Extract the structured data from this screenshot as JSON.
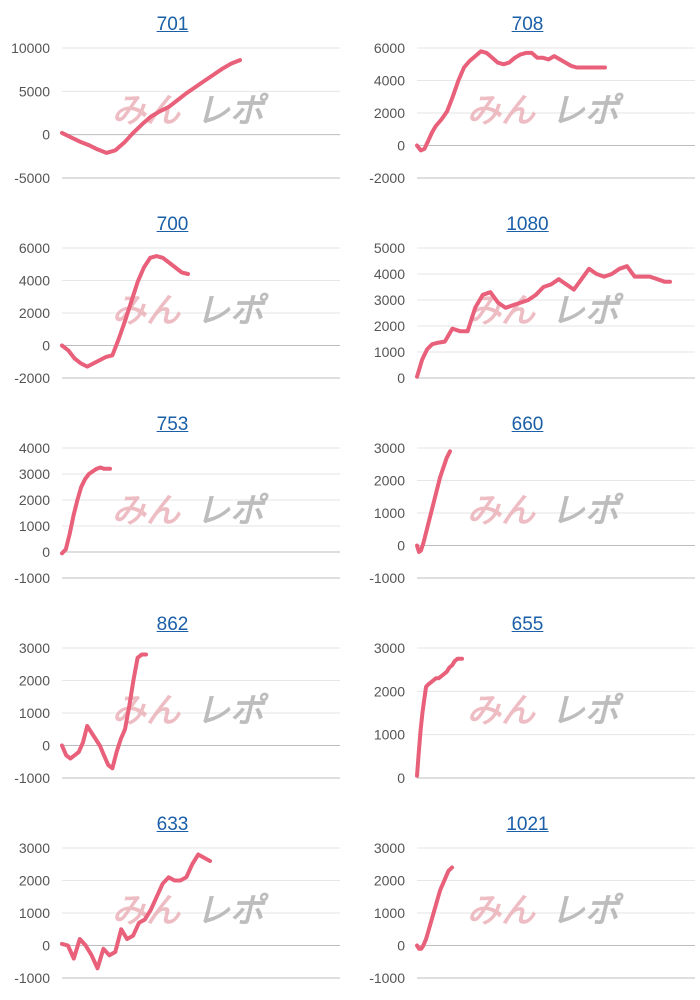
{
  "watermark": {
    "left": "みん",
    "right": "レポ"
  },
  "line_color": "#e8607a",
  "chart_data": [
    {
      "type": "line",
      "title": "701",
      "yticks": [
        10000,
        5000,
        0,
        -5000
      ],
      "ylim": [
        -5000,
        10000
      ],
      "x": [
        0,
        5,
        10,
        15,
        20,
        25,
        30,
        35,
        40,
        45,
        50,
        55,
        60,
        65,
        70,
        75,
        80,
        85,
        90,
        95,
        100
      ],
      "values": [
        200,
        -300,
        -800,
        -1200,
        -1700,
        -2100,
        -1800,
        -900,
        200,
        1200,
        2100,
        2700,
        3200,
        4000,
        4800,
        5500,
        6200,
        6900,
        7600,
        8200,
        8600
      ]
    },
    {
      "type": "line",
      "title": "708",
      "yticks": [
        6000,
        4000,
        2000,
        0,
        -2000
      ],
      "ylim": [
        -2000,
        6000
      ],
      "x": [
        0,
        2,
        4,
        6,
        8,
        10,
        13,
        16,
        19,
        22,
        25,
        28,
        31,
        34,
        37,
        40,
        43,
        46,
        49,
        52,
        55,
        58,
        61,
        64,
        67,
        70,
        73,
        76,
        79,
        82,
        85,
        88,
        91,
        94,
        97,
        100
      ],
      "values": [
        0,
        -300,
        -200,
        300,
        800,
        1200,
        1600,
        2100,
        3000,
        4000,
        4800,
        5200,
        5500,
        5800,
        5700,
        5400,
        5100,
        5000,
        5100,
        5400,
        5600,
        5700,
        5700,
        5400,
        5400,
        5300,
        5500,
        5300,
        5100,
        4900,
        4800,
        4800,
        4800,
        4800,
        4800,
        4800
      ]
    },
    {
      "type": "line",
      "title": "700",
      "yticks": [
        6000,
        4000,
        2000,
        0,
        -2000
      ],
      "ylim": [
        -2000,
        6000
      ],
      "x": [
        0,
        5,
        10,
        15,
        20,
        25,
        30,
        35,
        40,
        45,
        50,
        55,
        60,
        65,
        70,
        75,
        80,
        85,
        90,
        95,
        100
      ],
      "values": [
        0,
        -300,
        -800,
        -1100,
        -1300,
        -1100,
        -900,
        -700,
        -600,
        400,
        1500,
        2700,
        3900,
        4800,
        5400,
        5500,
        5400,
        5100,
        4800,
        4500,
        4400
      ]
    },
    {
      "type": "line",
      "title": "1080",
      "yticks": [
        5000,
        4000,
        3000,
        2000,
        1000,
        0
      ],
      "ylim": [
        0,
        5000
      ],
      "x": [
        0,
        2,
        4,
        6,
        8,
        11,
        14,
        17,
        20,
        23,
        26,
        29,
        32,
        35,
        38,
        41,
        44,
        47,
        50,
        53,
        56,
        59,
        62,
        65,
        68,
        71,
        74,
        77,
        80,
        83,
        86,
        89,
        92,
        95,
        98,
        100
      ],
      "values": [
        50,
        700,
        1100,
        1300,
        1350,
        1400,
        1900,
        1800,
        1800,
        2700,
        3200,
        3300,
        2900,
        2700,
        2800,
        2900,
        3000,
        3200,
        3500,
        3600,
        3800,
        3600,
        3400,
        3800,
        4200,
        4000,
        3900,
        4000,
        4200,
        4300,
        3900,
        3900,
        3900,
        3800,
        3700,
        3700
      ]
    },
    {
      "type": "line",
      "title": "753",
      "yticks": [
        4000,
        3000,
        2000,
        1000,
        0,
        -1000
      ],
      "ylim": [
        -1000,
        4000
      ],
      "x": [
        0,
        8,
        16,
        24,
        32,
        40,
        48,
        56,
        64,
        72,
        80,
        88,
        100
      ],
      "values": [
        -50,
        100,
        700,
        1400,
        2000,
        2500,
        2800,
        3000,
        3100,
        3200,
        3250,
        3200,
        3200
      ]
    },
    {
      "type": "line",
      "title": "660",
      "yticks": [
        3000,
        2000,
        1000,
        0,
        -1000
      ],
      "ylim": [
        -1000,
        3000
      ],
      "x": [
        0,
        6,
        12,
        20,
        30,
        40,
        50,
        60,
        70,
        80,
        90,
        100
      ],
      "values": [
        0,
        -200,
        -150,
        100,
        500,
        900,
        1300,
        1700,
        2100,
        2400,
        2700,
        2900
      ]
    },
    {
      "type": "line",
      "title": "862",
      "yticks": [
        3000,
        2000,
        1000,
        0,
        -1000
      ],
      "ylim": [
        -1000,
        3000
      ],
      "x": [
        0,
        5,
        10,
        15,
        20,
        25,
        30,
        35,
        40,
        45,
        50,
        55,
        60,
        65,
        70,
        75,
        80,
        85,
        90,
        95,
        100
      ],
      "values": [
        0,
        -300,
        -400,
        -300,
        -200,
        100,
        600,
        400,
        200,
        0,
        -300,
        -600,
        -700,
        -200,
        200,
        500,
        1200,
        2000,
        2700,
        2800,
        2800
      ]
    },
    {
      "type": "line",
      "title": "655",
      "yticks": [
        3000,
        2000,
        1000,
        0
      ],
      "ylim": [
        0,
        3000
      ],
      "x": [
        0,
        4,
        8,
        12,
        16,
        20,
        24,
        30,
        36,
        42,
        48,
        54,
        60,
        66,
        72,
        78,
        84,
        90,
        96,
        100
      ],
      "values": [
        50,
        600,
        1100,
        1500,
        1800,
        2100,
        2150,
        2200,
        2250,
        2300,
        2300,
        2350,
        2400,
        2450,
        2550,
        2600,
        2700,
        2750,
        2750,
        2750
      ]
    },
    {
      "type": "line",
      "title": "633",
      "yticks": [
        3000,
        2000,
        1000,
        0,
        -1000
      ],
      "ylim": [
        -1000,
        3000
      ],
      "x": [
        0,
        4,
        8,
        12,
        16,
        20,
        24,
        28,
        32,
        36,
        40,
        44,
        48,
        52,
        56,
        60,
        64,
        68,
        72,
        76,
        80,
        84,
        88,
        92,
        96,
        100
      ],
      "values": [
        50,
        0,
        -400,
        200,
        0,
        -300,
        -700,
        -100,
        -300,
        -200,
        500,
        200,
        300,
        700,
        800,
        1100,
        1500,
        1900,
        2100,
        2000,
        2000,
        2100,
        2500,
        2800,
        2700,
        2600
      ]
    },
    {
      "type": "line",
      "title": "1021",
      "yticks": [
        3000,
        2000,
        1000,
        0,
        -1000
      ],
      "ylim": [
        -1000,
        3000
      ],
      "x": [
        0,
        6,
        12,
        18,
        26,
        34,
        42,
        50,
        58,
        66,
        74,
        82,
        90,
        100
      ],
      "values": [
        0,
        -100,
        -100,
        0,
        200,
        500,
        800,
        1100,
        1400,
        1700,
        1900,
        2100,
        2300,
        2400
      ]
    }
  ]
}
